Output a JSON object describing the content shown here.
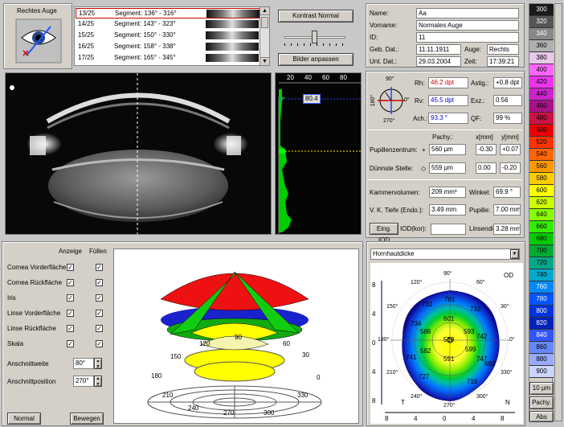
{
  "eye_selector": {
    "label": "Rechtes Auge"
  },
  "segments": [
    {
      "index": "13/25",
      "label": "Segment: 136° - 316°"
    },
    {
      "index": "14/25",
      "label": "Segment: 143° - 323°"
    },
    {
      "index": "15/25",
      "label": "Segment: 150° - 330°"
    },
    {
      "index": "16/25",
      "label": "Segment: 158° - 338°"
    },
    {
      "index": "17/25",
      "label": "Segment: 165° - 345°"
    }
  ],
  "buttons": {
    "contrast": "Kontrast Normal",
    "fit": "Bilder anpassen",
    "normal": "Normal",
    "move": "Bewegen",
    "eing_iod": "Eing. IOD",
    "iod_kor": "IOD(kor):"
  },
  "densito": {
    "ticks": [
      "20",
      "40",
      "60",
      "80"
    ],
    "value": "80.4"
  },
  "patient": {
    "name_label": "Name:",
    "name": "Aa",
    "vorname_label": "Vorname:",
    "vorname": "Normales Auge",
    "id_label": "ID:",
    "id": "11",
    "geb_label": "Geb. Dat.:",
    "geb": "11.11.1911",
    "auge_label": "Auge:",
    "auge": "Rechts",
    "unt_label": "Unt. Dat.:",
    "unt": "29.03.2004",
    "zeit_label": "Zeit:",
    "zeit": "17:39:21"
  },
  "kerato": {
    "axis_top": "90°",
    "axis_bottom": "270°",
    "axis_left": "180°",
    "axis_right": "0°",
    "rh_label": "Rh:",
    "rh": "46.2 dpt",
    "rv_label": "Rv:",
    "rv": "45.5 dpt",
    "ach_label": "Ach.:",
    "ach": "93.3 °",
    "astig_label": "Astig.:",
    "astig": "+0.8 dpt",
    "exz_label": "Exz.:",
    "exz": "0.56",
    "qf_label": "QF:",
    "qf": "99 %"
  },
  "pachy": {
    "pachy_label": "Pachy.:",
    "x_label": "x[mm]",
    "y_label": "y[mm]",
    "pupil_label": "Pupillenzentrum:",
    "pupil_pachy": "560 µm",
    "pupil_x": "-0.30",
    "pupil_y": "+0.07",
    "thin_label": "Dünnste Stelle:",
    "thin_pachy": "559 µm",
    "thin_x": "0.00",
    "thin_y": "-0.20"
  },
  "chamber": {
    "volume_label": "Kammervolumen:",
    "volume": "209 mm³",
    "angle_label": "Winkel:",
    "angle": "69.9 °",
    "depth_label": "V. K. Tiefe (Endo.):",
    "depth": "3.49 mm",
    "pupil_label": "Pupille:",
    "pupil": "7.00 mm",
    "lens_label": "Linsendi.:",
    "lens": "3.28 mm"
  },
  "display_options": {
    "anzeige": "Anzeige",
    "fuellen": "Füllen",
    "rows": [
      "Cornea Vorderfläche",
      "Cornea Rückfläche",
      "Iris",
      "Linse Vorderfläche",
      "Linse Rückfläche",
      "Skala"
    ],
    "cut_width_label": "Anschnittweite",
    "cut_width": "80°",
    "cut_pos_label": "Anschnittposition",
    "cut_pos": "270°"
  },
  "plot3d": {
    "labels": [
      "150",
      "120",
      "90",
      "60",
      "30",
      "0",
      "330",
      "300",
      "270",
      "240",
      "210",
      "180"
    ]
  },
  "map": {
    "dropdown": "Hornhautdicke",
    "od": "OD",
    "t": "T",
    "n": "N",
    "angles": [
      "90°",
      "60°",
      "30°",
      "0°",
      "330°",
      "300°",
      "270°",
      "240°",
      "210°",
      "180°",
      "150°",
      "120°"
    ],
    "values": [
      "601",
      "593",
      "559",
      "586",
      "599",
      "582",
      "591",
      "731",
      "781",
      "732",
      "742",
      "716",
      "727",
      "747",
      "741",
      "734",
      "682"
    ],
    "axis": [
      "8",
      "4",
      "0",
      "4",
      "8"
    ]
  },
  "scale": {
    "values": [
      "300",
      "320",
      "340",
      "360",
      "380",
      "400",
      "420",
      "440",
      "460",
      "480",
      "500",
      "520",
      "540",
      "560",
      "580",
      "600",
      "620",
      "640",
      "660",
      "680",
      "700",
      "720",
      "740",
      "760",
      "780",
      "800",
      "820",
      "840",
      "860",
      "880",
      "900"
    ],
    "colors": [
      "#1a1a1a",
      "#555555",
      "#888888",
      "#b0b0b0",
      "#e8c8e8",
      "#ff66ff",
      "#ee33ee",
      "#cc22cc",
      "#aa1188",
      "#cc1144",
      "#ee0000",
      "#ff3300",
      "#ff6600",
      "#ff9900",
      "#ffcc00",
      "#ffff00",
      "#ccff00",
      "#88ff00",
      "#33ee00",
      "#00cc00",
      "#00aa33",
      "#00aa88",
      "#00aacc",
      "#0088ff",
      "#0055ff",
      "#0033dd",
      "#0022bb",
      "#3355ff",
      "#6688ff",
      "#99aaff",
      "#ccd4ff"
    ],
    "step": "10 µm",
    "pachy": "Pachy.",
    "abs": "Abs"
  }
}
